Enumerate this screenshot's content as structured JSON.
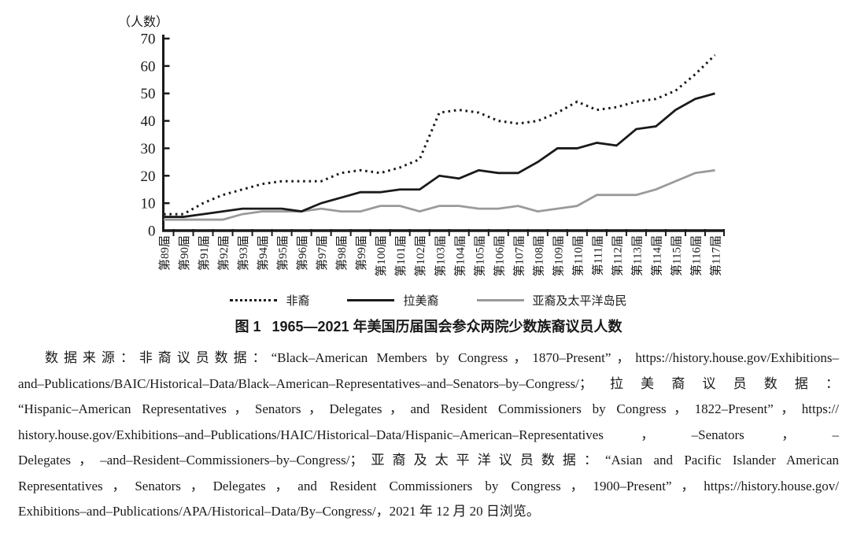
{
  "chart": {
    "y_axis_title": "（人数）"
  },
  "chart_data": {
    "type": "line",
    "title": "图1 1965—2021年美国历届国会参众两院少数族裔议员人数",
    "categories": [
      "第89届",
      "第90届",
      "第91届",
      "第92届",
      "第93届",
      "第94届",
      "第95届",
      "第96届",
      "第97届",
      "第98届",
      "第99届",
      "第100届",
      "第101届",
      "第102届",
      "第103届",
      "第104届",
      "第105届",
      "第106届",
      "第107届",
      "第108届",
      "第109届",
      "第110届",
      "第111届",
      "第112届",
      "第113届",
      "第114届",
      "第115届",
      "第116届",
      "第117届"
    ],
    "series": [
      {
        "name": "非裔",
        "line_style": "dotted",
        "color": "#1a1a1a",
        "values": [
          6,
          6,
          10,
          13,
          15,
          17,
          18,
          18,
          18,
          21,
          22,
          21,
          23,
          26,
          43,
          44,
          43,
          40,
          39,
          40,
          43,
          47,
          44,
          45,
          47,
          48,
          51,
          57,
          64
        ]
      },
      {
        "name": "拉美裔",
        "line_style": "solid",
        "color": "#1a1a1a",
        "values": [
          5,
          5,
          6,
          7,
          8,
          8,
          8,
          7,
          10,
          12,
          14,
          14,
          15,
          15,
          20,
          19,
          22,
          21,
          21,
          25,
          30,
          30,
          32,
          31,
          37,
          38,
          44,
          48,
          50
        ]
      },
      {
        "name": "亚裔及太平洋岛民",
        "line_style": "solid",
        "color": "#9a9a9a",
        "values": [
          4,
          4,
          4,
          4,
          6,
          7,
          7,
          7,
          8,
          7,
          7,
          9,
          9,
          7,
          9,
          9,
          8,
          8,
          9,
          7,
          8,
          9,
          13,
          13,
          13,
          15,
          18,
          21,
          22
        ]
      }
    ],
    "xlabel": "",
    "ylabel": "（人数）",
    "ylim": [
      0,
      70
    ],
    "y_ticks": [
      0,
      10,
      20,
      30,
      40,
      50,
      60,
      70
    ],
    "grid": false,
    "legend_position": "bottom"
  },
  "figure": {
    "caption_label": "图 1",
    "caption_title": "1965—2021 年美国历届国会参众两院少数族裔议员人数"
  },
  "source_note": {
    "lines": [
      "数据来源：非裔议员数据：“Black–American Members by Congress，1870–Present”，https://history.house.gov/Exhibitions–",
      "and–Publications/BAIC/Historical–Data/Black–American–Representatives–and–Senators–by–Congress/；拉美裔议员数据：",
      "“Hispanic–American Representatives，Senators，Delegates，and Resident Commissioners by Congress，1822–Present”，https://",
      "history.house.gov/Exhibitions–and–Publications/HAIC/Historical–Data/Hispanic–American–Representatives，–Senators，–",
      "Delegates，–and–Resident–Commissioners–by–Congress/；亚裔及太平洋议员数据：“Asian and Pacific Islander American",
      "Representatives，Senators，Delegates，and Resident Commissioners by Congress，1900–Present”，https://history.house.gov/",
      "Exhibitions–and–Publications/APA/Historical–Data/By–Congress/，2021 年 12 月 20 日浏览。"
    ]
  }
}
